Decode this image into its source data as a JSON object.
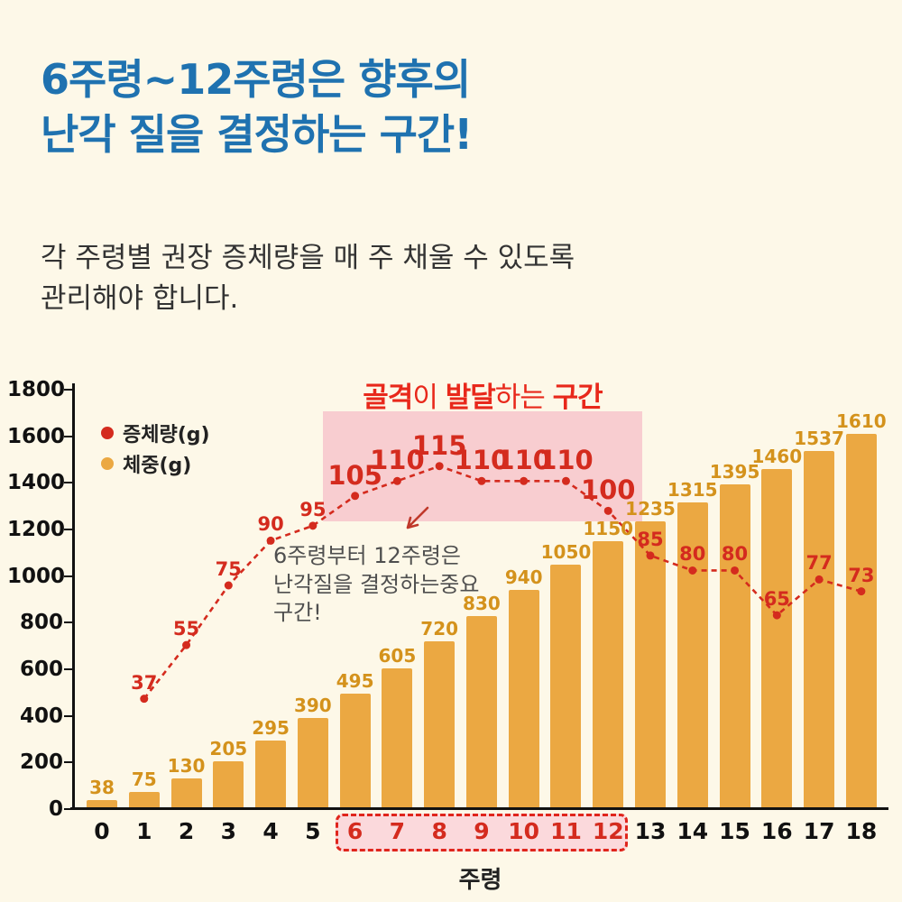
{
  "page": {
    "title_line1": "6주령~12주령은 향후의",
    "title_line2": "난각 질을 결정하는 구간!",
    "subtitle_line1": "각 주령별 권장 증체량을 매 주 채울 수 있도록",
    "subtitle_line2": "관리해야 합니다.",
    "colors": {
      "title_blue": "#1f72b0",
      "background": "#fdf8e8"
    }
  },
  "chart_data": {
    "type": "bar",
    "subtype": "bar+line combo",
    "categories": [
      "0",
      "1",
      "2",
      "3",
      "4",
      "5",
      "6",
      "7",
      "8",
      "9",
      "10",
      "11",
      "12",
      "13",
      "14",
      "15",
      "16",
      "17",
      "18"
    ],
    "series": [
      {
        "name": "증체량(g)",
        "type": "line",
        "color": "#d42b1e",
        "weeks": [
          1,
          2,
          3,
          4,
          5,
          6,
          7,
          8,
          9,
          10,
          11,
          12,
          13,
          14,
          15,
          16,
          17,
          18
        ],
        "values": [
          37,
          55,
          75,
          90,
          95,
          105,
          110,
          115,
          110,
          110,
          110,
          100,
          85,
          80,
          80,
          65,
          77,
          73
        ]
      },
      {
        "name": "체중(g)",
        "type": "bar",
        "color": "#eba842",
        "label_color": "#d4921c",
        "values": [
          38,
          75,
          130,
          205,
          295,
          390,
          495,
          605,
          720,
          830,
          940,
          1050,
          1150,
          1235,
          1315,
          1395,
          1460,
          1537,
          1610
        ]
      }
    ],
    "xlabel": "주령",
    "ylim": [
      0,
      1800
    ],
    "ytick_step": 200,
    "grid": false,
    "legend_position": "top-left",
    "highlight": {
      "weeks_start": 6,
      "weeks_end": 12,
      "band_color": "#f8cdd0",
      "text_color": "#e8281b",
      "band_title_segments": [
        {
          "text": "골격",
          "bold": true
        },
        {
          "text": "이 ",
          "bold": false
        },
        {
          "text": "발달",
          "bold": true
        },
        {
          "text": "하는 ",
          "bold": false
        },
        {
          "text": "구간",
          "bold": true
        }
      ],
      "annotation_lines": [
        "6주령부터 12주령은",
        "난각질을 결정하는중요",
        "구간!"
      ],
      "big_label_weeks": [
        6,
        7,
        8,
        9,
        10,
        11,
        12
      ]
    }
  }
}
